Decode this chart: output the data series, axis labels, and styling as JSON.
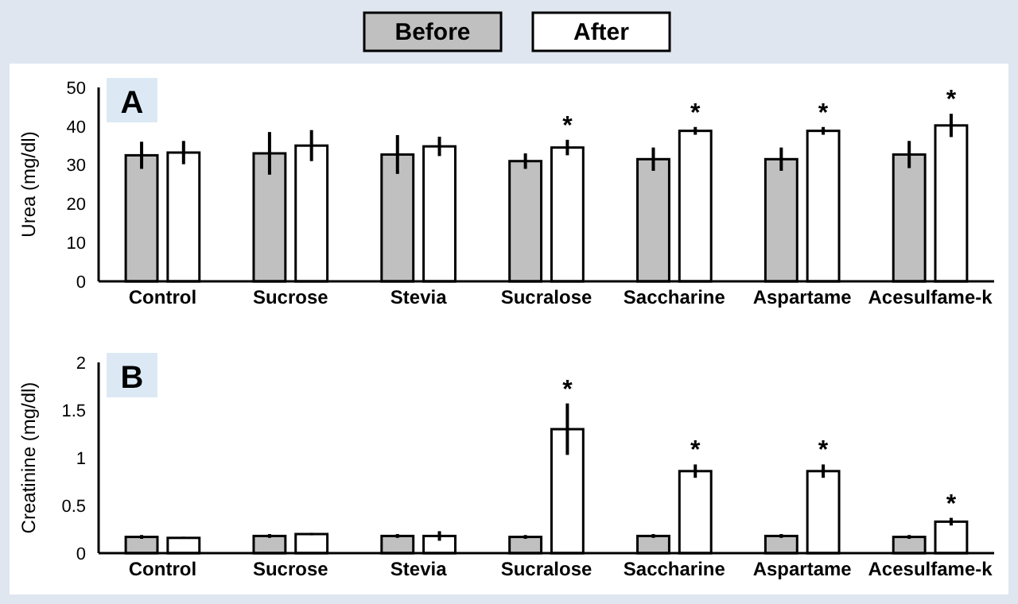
{
  "chart_data": [
    {
      "type": "bar",
      "title": "A",
      "ylabel": "Urea (mg/dl)",
      "categories": [
        "Control",
        "Sucrose",
        "Stevia",
        "Sucralose",
        "Saccharine",
        "Aspartame",
        "Acesulfame-k"
      ],
      "series": [
        {
          "name": "Before",
          "color": "#c0c0c0",
          "values": [
            32.5,
            33,
            32.7,
            31,
            31.5,
            31.5,
            32.7
          ],
          "errors": [
            3.5,
            5.5,
            5,
            2,
            3,
            3,
            3.5
          ]
        },
        {
          "name": "After",
          "color": "#ffffff",
          "values": [
            33.2,
            35,
            34.8,
            34.5,
            38.8,
            38.8,
            40.2
          ],
          "errors": [
            3,
            4,
            2.5,
            2,
            1,
            1,
            3
          ],
          "value_labels": [
            null,
            null,
            null,
            "*",
            "*",
            "*",
            "*"
          ]
        }
      ],
      "ylim": [
        0,
        50
      ],
      "yticks": [
        0,
        10,
        20,
        30,
        40,
        50
      ],
      "legend": "top"
    },
    {
      "type": "bar",
      "title": "B",
      "ylabel": "Creatinine (mg/dl)",
      "categories": [
        "Control",
        "Sucrose",
        "Stevia",
        "Sucralose",
        "Saccharine",
        "Aspartame",
        "Acesulfame-k"
      ],
      "series": [
        {
          "color": "#c0c0c0",
          "values": [
            0.17,
            0.18,
            0.18,
            0.17,
            0.18,
            0.18,
            0.17
          ],
          "errors": [
            0.02,
            0.02,
            0.02,
            0.02,
            0.02,
            0.02,
            0.02
          ]
        },
        {
          "color": "#ffffff",
          "values": [
            0.16,
            0.2,
            0.18,
            1.3,
            0.86,
            0.86,
            0.33
          ],
          "errors": [
            0.01,
            0.01,
            0.05,
            0.27,
            0.07,
            0.07,
            0.04
          ],
          "value_labels": [
            null,
            null,
            null,
            "*",
            "*",
            "*",
            "*"
          ]
        }
      ],
      "ylim": [
        0,
        2
      ],
      "yticks": [
        0,
        {
          "value": 0.5,
          "label": "0.5"
        },
        1,
        {
          "value": 1.5,
          "label": "1.5"
        },
        2
      ]
    }
  ]
}
